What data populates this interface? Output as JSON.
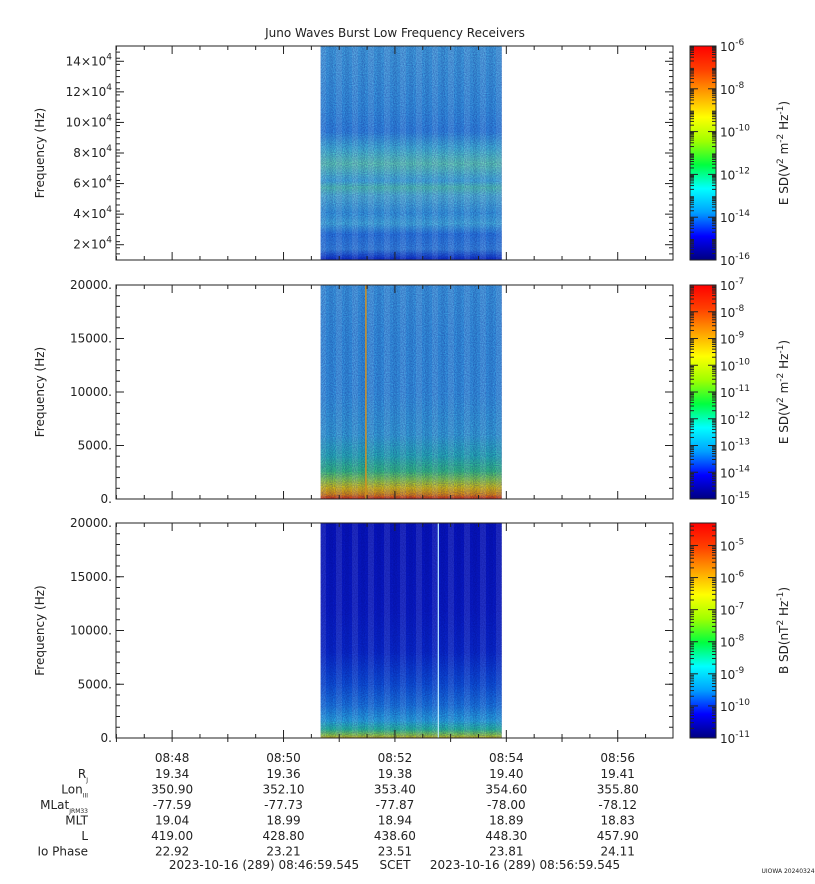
{
  "chart_data": [
    {
      "type": "heatmap",
      "title": "Juno Waves Burst Low Frequency Receivers",
      "ylabel": "Frequency (Hz)",
      "ylim": [
        10000,
        150000
      ],
      "y_ticks": [
        {
          "value": 20000,
          "mant": "2",
          "exp": "4"
        },
        {
          "value": 40000,
          "mant": "4",
          "exp": "4"
        },
        {
          "value": 60000,
          "mant": "6",
          "exp": "4"
        },
        {
          "value": 80000,
          "mant": "8",
          "exp": "4"
        },
        {
          "value": 100000,
          "mant": "10",
          "exp": "4"
        },
        {
          "value": 120000,
          "mant": "12",
          "exp": "4"
        },
        {
          "value": 140000,
          "mant": "14",
          "exp": "4"
        }
      ],
      "data_window": {
        "start": "08:50:40",
        "end": "08:53:55"
      },
      "colorbar": {
        "label_base": "E SD(V",
        "label_mid": " m",
        "label_end": " Hz",
        "exp2": "2",
        "expm2": "-2",
        "expm1": "-1",
        "range_exp": [
          -16,
          -6
        ],
        "ticks": [
          {
            "base": "10",
            "exp": "-6"
          },
          {
            "base": "10",
            "exp": "-8"
          },
          {
            "base": "10",
            "exp": "-10"
          },
          {
            "base": "10",
            "exp": "-12"
          },
          {
            "base": "10",
            "exp": "-14"
          },
          {
            "base": "10",
            "exp": "-16"
          }
        ]
      }
    },
    {
      "type": "heatmap",
      "ylabel": "Frequency (Hz)",
      "ylim": [
        0,
        20000
      ],
      "y_ticks": [
        {
          "value": 0,
          "label": "0."
        },
        {
          "value": 5000,
          "label": "5000."
        },
        {
          "value": 10000,
          "label": "10000."
        },
        {
          "value": 15000,
          "label": "15000."
        },
        {
          "value": 20000,
          "label": "20000."
        }
      ],
      "data_window": {
        "start": "08:50:40",
        "end": "08:53:55"
      },
      "colorbar": {
        "label_base": "E SD(V",
        "label_mid": " m",
        "label_end": " Hz",
        "exp2": "2",
        "expm2": "-2",
        "expm1": "-1",
        "range_exp": [
          -15,
          -7
        ],
        "ticks": [
          {
            "base": "10",
            "exp": "-7"
          },
          {
            "base": "10",
            "exp": "-8"
          },
          {
            "base": "10",
            "exp": "-9"
          },
          {
            "base": "10",
            "exp": "-10"
          },
          {
            "base": "10",
            "exp": "-11"
          },
          {
            "base": "10",
            "exp": "-12"
          },
          {
            "base": "10",
            "exp": "-13"
          },
          {
            "base": "10",
            "exp": "-14"
          },
          {
            "base": "10",
            "exp": "-15"
          }
        ]
      }
    },
    {
      "type": "heatmap",
      "ylabel": "Frequency (Hz)",
      "ylim": [
        0,
        20000
      ],
      "y_ticks": [
        {
          "value": 0,
          "label": "0."
        },
        {
          "value": 5000,
          "label": "5000."
        },
        {
          "value": 10000,
          "label": "10000."
        },
        {
          "value": 15000,
          "label": "15000."
        },
        {
          "value": 20000,
          "label": "20000."
        }
      ],
      "data_window": {
        "start": "08:50:40",
        "end": "08:53:55"
      },
      "colorbar": {
        "label_base": "B SD(nT",
        "label_mid": "",
        "label_end": " Hz",
        "exp2": "2",
        "expm2": "",
        "expm1": "-1",
        "range_exp": [
          -11,
          -4.3
        ],
        "ticks": [
          {
            "base": "10",
            "exp": "-5"
          },
          {
            "base": "10",
            "exp": "-6"
          },
          {
            "base": "10",
            "exp": "-7"
          },
          {
            "base": "10",
            "exp": "-8"
          },
          {
            "base": "10",
            "exp": "-9"
          },
          {
            "base": "10",
            "exp": "-10"
          },
          {
            "base": "10",
            "exp": "-11"
          }
        ]
      }
    }
  ],
  "time_axis": {
    "range": [
      "08:46:59.545",
      "08:56:59.545"
    ],
    "tick_labels": [
      "08:48",
      "08:50",
      "08:52",
      "08:54",
      "08:56"
    ]
  },
  "ephemeris": {
    "rows": [
      {
        "label": "R",
        "sub": "J",
        "values": [
          "19.34",
          "19.36",
          "19.38",
          "19.40",
          "19.41"
        ]
      },
      {
        "label": "Lon",
        "sub": "III",
        "values": [
          "350.90",
          "352.10",
          "353.40",
          "354.60",
          "355.80"
        ]
      },
      {
        "label": "MLat",
        "sub": "JRM33",
        "values": [
          "-77.59",
          "-77.73",
          "-77.87",
          "-78.00",
          "-78.12"
        ]
      },
      {
        "label": "MLT",
        "sub": "",
        "values": [
          "19.04",
          "18.99",
          "18.94",
          "18.89",
          "18.83"
        ]
      },
      {
        "label": "L",
        "sub": "",
        "values": [
          "419.00",
          "428.80",
          "438.60",
          "448.30",
          "457.90"
        ]
      },
      {
        "label": "Io Phase",
        "sub": "",
        "values": [
          "22.92",
          "23.21",
          "23.51",
          "23.81",
          "24.11"
        ]
      }
    ]
  },
  "footer": {
    "start": "2023-10-16 (289) 08:46:59.545",
    "mid": "SCET",
    "end": "2023-10-16 (289) 08:56:59.545",
    "stamp": "UIOWA 20240324"
  },
  "colors": {
    "colormap": [
      "#000080",
      "#0000ff",
      "#00a0ff",
      "#00ffff",
      "#00ff40",
      "#a0ff00",
      "#ffff00",
      "#ffa000",
      "#ff4000",
      "#ff0000"
    ]
  }
}
